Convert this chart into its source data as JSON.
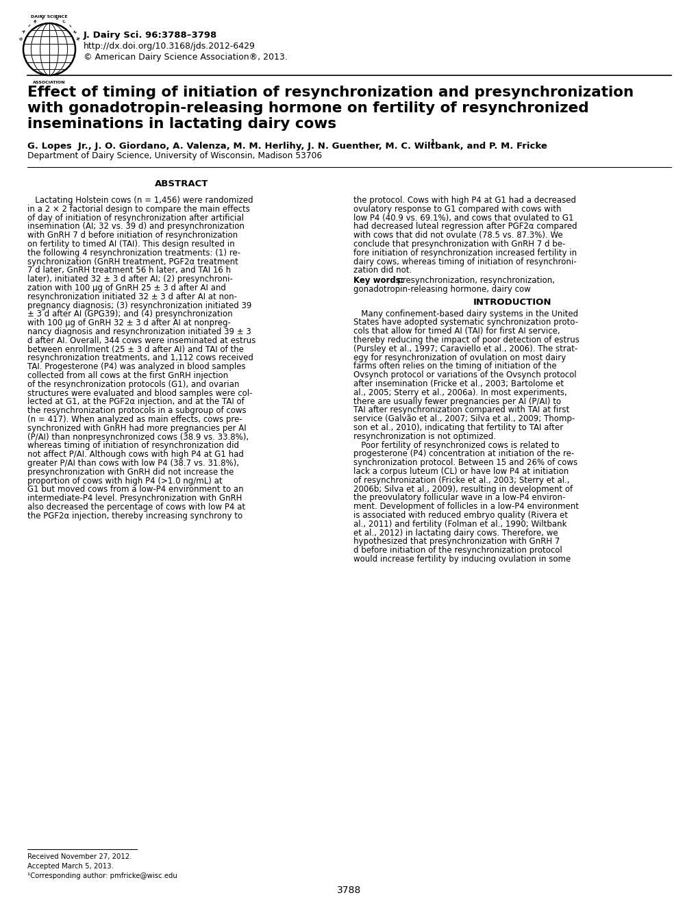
{
  "background_color": "#ffffff",
  "page_width": 10.2,
  "page_height": 13.2,
  "journal_line1": "J. Dairy Sci. 96:3788–3798",
  "journal_line2": "http://dx.doi.org/10.3168/jds.2012-6429",
  "journal_line3": "© American Dairy Science Association®, 2013.",
  "title_line1": "Effect of timing of initiation of resynchronization and presynchronization",
  "title_line2": "with gonadotropin-releasing hormone on fertility of resynchronized",
  "title_line3": "inseminations in lactating dairy cows",
  "authors": "G. Lopes  Jr., J. O. Giordano, A. Valenza, M. M. Herlihy, J. N. Guenther, M. C. Wiltbank, and P. M. Fricke",
  "authors_superscript": "1",
  "affiliation": "Department of Dairy Science, University of Wisconsin, Madison 53706",
  "abstract_title": "ABSTRACT",
  "abstract_col1_lines": [
    "   Lactating Holstein cows (n = 1,456) were randomized",
    "in a 2 × 2 factorial design to compare the main effects",
    "of day of initiation of resynchronization after artificial",
    "insemination (AI; 32 vs. 39 d) and presynchronization",
    "with GnRH 7 d before initiation of resynchronization",
    "on fertility to timed AI (TAI). This design resulted in",
    "the following 4 resynchronization treatments: (1) re-",
    "synchronization (GnRH treatment, PGF2α treatment",
    "7 d later, GnRH treatment 56 h later, and TAI 16 h",
    "later), initiated 32 ± 3 d after AI; (2) presynchroni-",
    "zation with 100 μg of GnRH 25 ± 3 d after AI and",
    "resynchronization initiated 32 ± 3 d after AI at non-",
    "pregnancy diagnosis; (3) resynchronization initiated 39",
    "± 3 d after AI (GPG39); and (4) presynchronization",
    "with 100 μg of GnRH 32 ± 3 d after AI at nonpreg-",
    "nancy diagnosis and resynchronization initiated 39 ± 3",
    "d after AI. Overall, 344 cows were inseminated at estrus",
    "between enrollment (25 ± 3 d after AI) and TAI of the",
    "resynchronization treatments, and 1,112 cows received",
    "TAI. Progesterone (P4) was analyzed in blood samples",
    "collected from all cows at the first GnRH injection",
    "of the resynchronization protocols (G1), and ovarian",
    "structures were evaluated and blood samples were col-",
    "lected at G1, at the PGF2α injection, and at the TAI of",
    "the resynchronization protocols in a subgroup of cows",
    "(n = 417). When analyzed as main effects, cows pre-",
    "synchronized with GnRH had more pregnancies per AI",
    "(P/AI) than nonpresynchronized cows (38.9 vs. 33.8%),",
    "whereas timing of initiation of resynchronization did",
    "not affect P/AI. Although cows with high P4 at G1 had",
    "greater P/AI than cows with low P4 (38.7 vs. 31.8%),",
    "presynchronization with GnRH did not increase the",
    "proportion of cows with high P4 (>1.0 ng/mL) at",
    "G1 but moved cows from a low-P4 environment to an",
    "intermediate-P4 level. Presynchronization with GnRH",
    "also decreased the percentage of cows with low P4 at",
    "the PGF2α injection, thereby increasing synchrony to"
  ],
  "abstract_col2_lines": [
    "the protocol. Cows with high P4 at G1 had a decreased",
    "ovulatory response to G1 compared with cows with",
    "low P4 (40.9 vs. 69.1%), and cows that ovulated to G1",
    "had decreased luteal regression after PGF2α compared",
    "with cows that did not ovulate (78.5 vs. 87.3%). We",
    "conclude that presynchronization with GnRH 7 d be-",
    "fore initiation of resynchronization increased fertility in",
    "dairy cows, whereas timing of initiation of resynchroni-",
    "zation did not."
  ],
  "keywords_line1": "Key words:   presynchronization, resynchronization,",
  "keywords_line2": "gonadotropin-releasing hormone, dairy cow",
  "intro_title": "INTRODUCTION",
  "intro_col2_lines": [
    "   Many confinement-based dairy systems in the United",
    "States have adopted systematic synchronization proto-",
    "cols that allow for timed AI (TAI) for first AI service,",
    "thereby reducing the impact of poor detection of estrus",
    "(Pursley et al., 1997; Caraviello et al., 2006). The strat-",
    "egy for resynchronization of ovulation on most dairy",
    "farms often relies on the timing of initiation of the",
    "Ovsynch protocol or variations of the Ovsynch protocol",
    "after insemination (Fricke et al., 2003; Bartolome et",
    "al., 2005; Sterry et al., 2006a). In most experiments,",
    "there are usually fewer pregnancies per AI (P/AI) to",
    "TAI after resynchronization compared with TAI at first",
    "service (Galvão et al., 2007; Silva et al., 2009; Thomp-",
    "son et al., 2010), indicating that fertility to TAI after",
    "resynchronization is not optimized.",
    "   Poor fertility of resynchronized cows is related to",
    "progesterone (P4) concentration at initiation of the re-",
    "synchronization protocol. Between 15 and 26% of cows",
    "lack a corpus luteum (CL) or have low P4 at initiation",
    "of resynchronization (Fricke et al., 2003; Sterry et al.,",
    "2006b; Silva et al., 2009), resulting in development of",
    "the preovulatory follicular wave in a low-P4 environ-",
    "ment. Development of follicles in a low-P4 environment",
    "is associated with reduced embryo quality (Rivera et",
    "al., 2011) and fertility (Folman et al., 1990; Wiltbank",
    "et al., 2012) in lactating dairy cows. Therefore, we",
    "hypothesized that presynchronization with GnRH 7",
    "d before initiation of the resynchronization protocol",
    "would increase fertility by inducing ovulation in some"
  ],
  "footnote1": "Received November 27, 2012.",
  "footnote2": "Accepted March 5, 2013.",
  "footnote3": "¹Corresponding author: pmfricke@wisc.edu",
  "page_number": "3788"
}
